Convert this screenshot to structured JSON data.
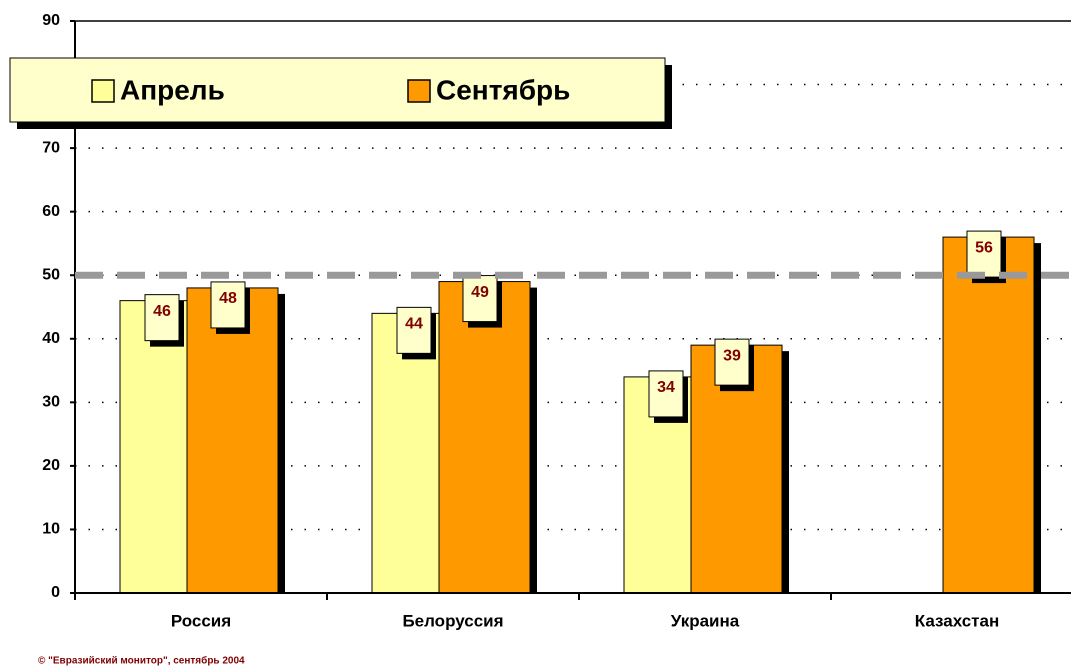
{
  "chart_data": {
    "type": "bar",
    "categories": [
      "Россия",
      "Белоруссия",
      "Украина",
      "Казахстан"
    ],
    "series": [
      {
        "name": "Апрель",
        "color": "#ffff99",
        "values": [
          46,
          44,
          34,
          null
        ]
      },
      {
        "name": "Сентябрь",
        "color": "#ff9900",
        "values": [
          48,
          49,
          39,
          56
        ]
      }
    ],
    "ylim": [
      0,
      90
    ],
    "yticks": [
      0,
      10,
      20,
      30,
      40,
      50,
      60,
      70,
      80,
      90
    ],
    "grid": true,
    "reference_line": 50,
    "footnote": "© \"Евразийский монитор\", сентябрь 2004"
  }
}
